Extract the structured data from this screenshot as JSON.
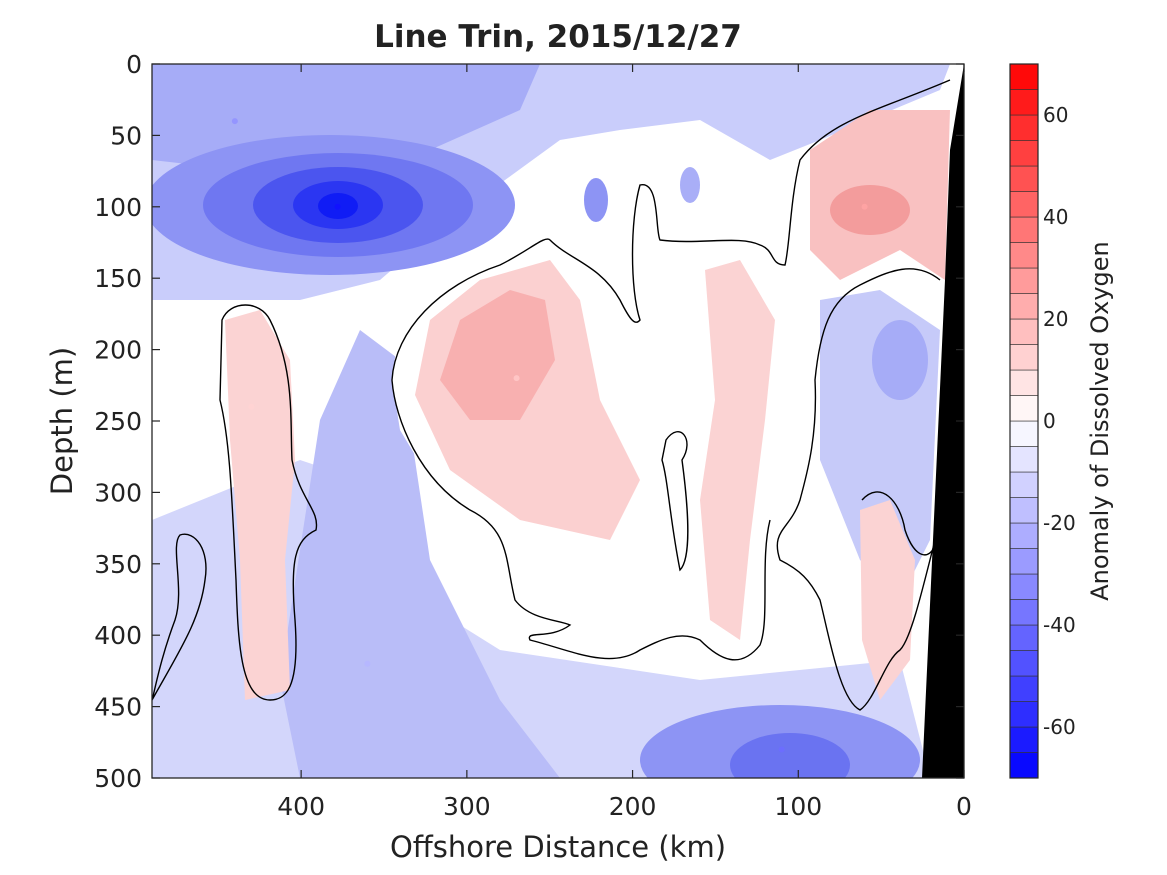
{
  "chart_data": {
    "type": "heatmap",
    "title": "Line Trin, 2015/12/27",
    "xlabel": "Offshore Distance (km)",
    "ylabel": "Depth (m)",
    "xlim": [
      490,
      0
    ],
    "ylim": [
      0,
      500
    ],
    "x_ticks": [
      400,
      300,
      200,
      100,
      0
    ],
    "y_ticks": [
      0,
      50,
      100,
      150,
      200,
      250,
      300,
      350,
      400,
      450,
      500
    ],
    "colorbar": {
      "label": "Anomaly of Dissolved Oxygen",
      "range": [
        -70,
        70
      ],
      "step": 5,
      "ticks": [
        60,
        40,
        20,
        0,
        -20,
        -40,
        -60
      ],
      "low_color": "#0000ff",
      "mid_color": "#ffffff",
      "high_color": "#ff0000"
    },
    "features": [
      {
        "name": "oxygen-minimum-core",
        "x": 378,
        "y": 100,
        "value": -65
      },
      {
        "name": "upper-offshore-low",
        "x": 440,
        "y": 40,
        "value": -30
      },
      {
        "name": "mid-section-high",
        "x": 270,
        "y": 220,
        "value": 15
      },
      {
        "name": "nearshore-upper-high",
        "x": 60,
        "y": 100,
        "value": 25
      },
      {
        "name": "offshore-mid-high",
        "x": 430,
        "y": 240,
        "value": 12
      },
      {
        "name": "deep-nearshore-low",
        "x": 110,
        "y": 480,
        "value": -40
      },
      {
        "name": "deep-mid-low",
        "x": 360,
        "y": 420,
        "value": -20
      }
    ],
    "zero_contour": true,
    "bathymetry_color": "#000000"
  }
}
